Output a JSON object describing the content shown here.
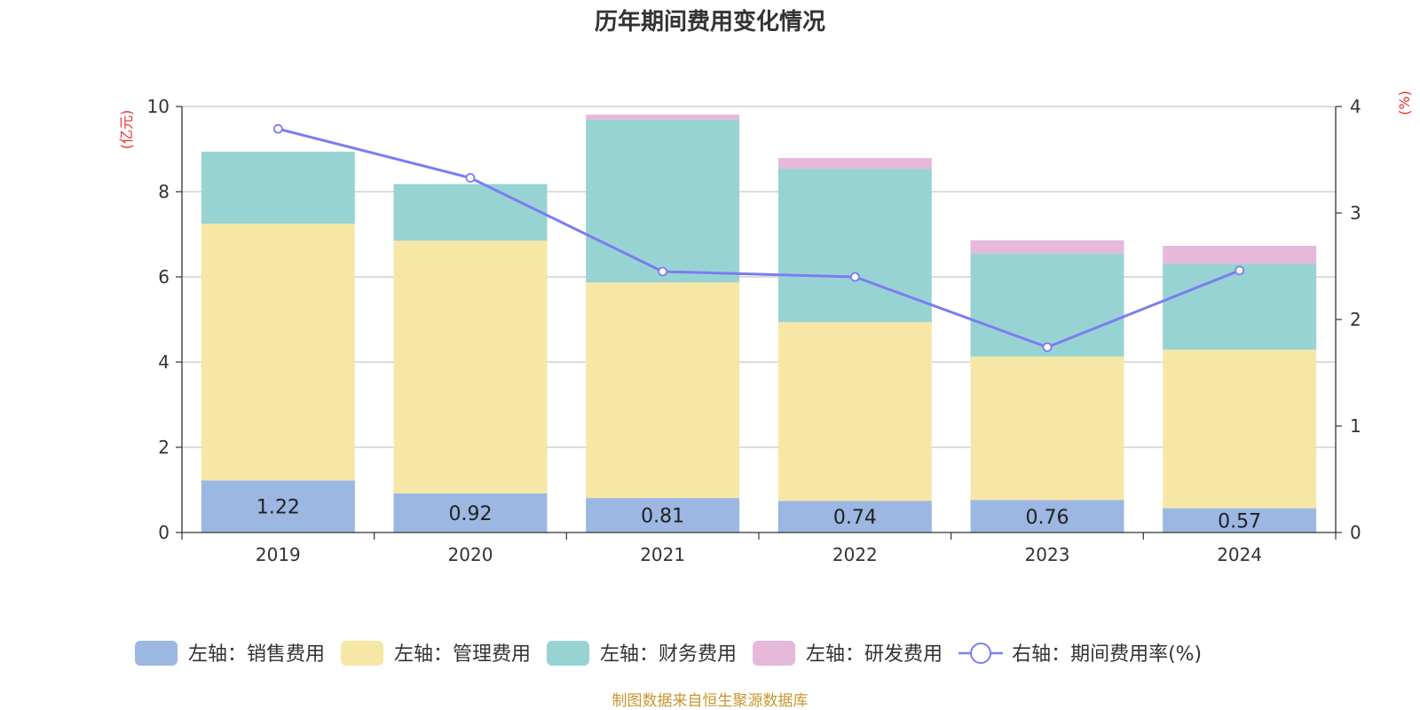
{
  "colors": {
    "sales": "#9bb7e2",
    "admin": "#f7e7a7",
    "finance": "#98d3d4",
    "rnd": "#e6b9da",
    "line": "#7b7df0",
    "unit_label": "#e8302c",
    "source": "#c8962f",
    "grid": "#c8c8c8",
    "axis": "#333333"
  },
  "chart_data": {
    "type": "bar",
    "stacked": true,
    "title": "历年期间费用变化情况",
    "left_unit": "(亿元)",
    "right_unit": "(%)",
    "categories": [
      "2019",
      "2020",
      "2021",
      "2022",
      "2023",
      "2024"
    ],
    "ylim_left": [
      0,
      10
    ],
    "yticks_left": [
      "0",
      "2",
      "4",
      "6",
      "8",
      "10"
    ],
    "ylim_right": [
      0,
      4
    ],
    "yticks_right": [
      "0",
      "1",
      "2",
      "3",
      "4"
    ],
    "series": [
      {
        "key": "sales",
        "name": "左轴：销售费用",
        "axis": "left",
        "values": [
          1.22,
          0.92,
          0.81,
          0.74,
          0.76,
          0.57
        ],
        "labels": [
          "1.22",
          "0.92",
          "0.81",
          "0.74",
          "0.76",
          "0.57"
        ]
      },
      {
        "key": "admin",
        "name": "左轴：管理费用",
        "axis": "left",
        "values": [
          6.03,
          5.93,
          5.06,
          4.2,
          3.37,
          3.72
        ]
      },
      {
        "key": "finance",
        "name": "左轴：财务费用",
        "axis": "left",
        "values": [
          1.69,
          1.33,
          3.82,
          3.6,
          2.42,
          2.02
        ]
      },
      {
        "key": "rnd",
        "name": "左轴：研发费用",
        "axis": "left",
        "values": [
          0,
          0,
          0.12,
          0.25,
          0.31,
          0.42
        ]
      }
    ],
    "line_series": {
      "key": "line",
      "name": "右轴：期间费用率(%)",
      "axis": "right",
      "values": [
        3.79,
        3.33,
        2.45,
        2.4,
        1.74,
        2.46
      ]
    },
    "grid": true,
    "legend_position": "bottom"
  },
  "source_text": "制图数据来自恒生聚源数据库"
}
